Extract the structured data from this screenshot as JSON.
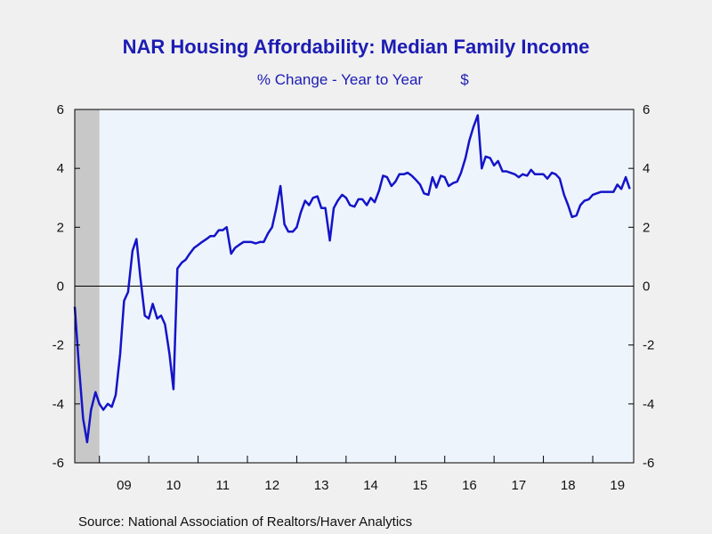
{
  "chart_data": {
    "type": "line",
    "title": "NAR Housing Affordability: Median Family Income",
    "subtitle_left": "% Change - Year to Year",
    "subtitle_right": "$",
    "source": "Source:  National Association of Realtors/Haver Analytics",
    "ylim": [
      -6,
      6
    ],
    "y_ticks_left": [
      "6",
      "4",
      "2",
      "0",
      "-2",
      "-4",
      "-6"
    ],
    "y_ticks_right": [
      "6",
      "4",
      "2",
      "0",
      "-2",
      "-4",
      "-6"
    ],
    "x_start": 2008.5,
    "x_end": 2019.83,
    "x_year_labels": [
      "09",
      "10",
      "11",
      "12",
      "13",
      "14",
      "15",
      "16",
      "17",
      "18",
      "19"
    ],
    "x_year_values": [
      2009.5,
      2010.5,
      2011.5,
      2012.5,
      2013.5,
      2014.5,
      2015.5,
      2016.5,
      2017.5,
      2018.5,
      2019.5
    ],
    "recession_shade": [
      2008.5,
      2009.0
    ],
    "grid": false,
    "colors": {
      "line": "#1414c8",
      "plot_bg": "#eef4fc",
      "recession": "#c8c8c8",
      "text": "#1c1cb4"
    },
    "series": [
      {
        "values": [
          [
            2008.5,
            -0.7
          ],
          [
            2008.58,
            -2.6
          ],
          [
            2008.67,
            -4.5
          ],
          [
            2008.75,
            -5.3
          ],
          [
            2008.83,
            -4.2
          ],
          [
            2008.92,
            -3.6
          ],
          [
            2009.0,
            -4.0
          ],
          [
            2009.08,
            -4.2
          ],
          [
            2009.17,
            -4.0
          ],
          [
            2009.25,
            -4.1
          ],
          [
            2009.33,
            -3.7
          ],
          [
            2009.42,
            -2.3
          ],
          [
            2009.5,
            -0.5
          ],
          [
            2009.58,
            -0.2
          ],
          [
            2009.67,
            1.2
          ],
          [
            2009.75,
            1.6
          ],
          [
            2009.83,
            0.3
          ],
          [
            2009.92,
            -1.0
          ],
          [
            2010.0,
            -1.1
          ],
          [
            2010.08,
            -0.6
          ],
          [
            2010.17,
            -1.1
          ],
          [
            2010.25,
            -1.0
          ],
          [
            2010.33,
            -1.3
          ],
          [
            2010.42,
            -2.3
          ],
          [
            2010.5,
            -3.5
          ],
          [
            2010.58,
            0.6
          ],
          [
            2010.67,
            0.8
          ],
          [
            2010.75,
            0.9
          ],
          [
            2010.83,
            1.1
          ],
          [
            2010.92,
            1.3
          ],
          [
            2011.0,
            1.4
          ],
          [
            2011.08,
            1.5
          ],
          [
            2011.17,
            1.6
          ],
          [
            2011.25,
            1.7
          ],
          [
            2011.33,
            1.7
          ],
          [
            2011.42,
            1.9
          ],
          [
            2011.5,
            1.9
          ],
          [
            2011.58,
            2.0
          ],
          [
            2011.67,
            1.1
          ],
          [
            2011.75,
            1.3
          ],
          [
            2011.83,
            1.4
          ],
          [
            2011.92,
            1.5
          ],
          [
            2012.0,
            1.5
          ],
          [
            2012.08,
            1.5
          ],
          [
            2012.17,
            1.45
          ],
          [
            2012.25,
            1.5
          ],
          [
            2012.33,
            1.5
          ],
          [
            2012.42,
            1.8
          ],
          [
            2012.5,
            2.0
          ],
          [
            2012.58,
            2.6
          ],
          [
            2012.67,
            3.4
          ],
          [
            2012.75,
            2.1
          ],
          [
            2012.83,
            1.85
          ],
          [
            2012.92,
            1.85
          ],
          [
            2013.0,
            2.0
          ],
          [
            2013.08,
            2.5
          ],
          [
            2013.17,
            2.9
          ],
          [
            2013.25,
            2.75
          ],
          [
            2013.33,
            3.0
          ],
          [
            2013.42,
            3.05
          ],
          [
            2013.5,
            2.65
          ],
          [
            2013.58,
            2.65
          ],
          [
            2013.67,
            1.55
          ],
          [
            2013.75,
            2.65
          ],
          [
            2013.83,
            2.9
          ],
          [
            2013.92,
            3.1
          ],
          [
            2014.0,
            3.0
          ],
          [
            2014.08,
            2.75
          ],
          [
            2014.17,
            2.7
          ],
          [
            2014.25,
            2.95
          ],
          [
            2014.33,
            2.95
          ],
          [
            2014.42,
            2.75
          ],
          [
            2014.5,
            3.0
          ],
          [
            2014.58,
            2.85
          ],
          [
            2014.67,
            3.25
          ],
          [
            2014.75,
            3.75
          ],
          [
            2014.83,
            3.7
          ],
          [
            2014.92,
            3.4
          ],
          [
            2015.0,
            3.55
          ],
          [
            2015.08,
            3.8
          ],
          [
            2015.17,
            3.8
          ],
          [
            2015.25,
            3.85
          ],
          [
            2015.33,
            3.75
          ],
          [
            2015.42,
            3.6
          ],
          [
            2015.5,
            3.45
          ],
          [
            2015.58,
            3.15
          ],
          [
            2015.67,
            3.1
          ],
          [
            2015.75,
            3.7
          ],
          [
            2015.83,
            3.35
          ],
          [
            2015.92,
            3.75
          ],
          [
            2016.0,
            3.7
          ],
          [
            2016.08,
            3.4
          ],
          [
            2016.17,
            3.5
          ],
          [
            2016.25,
            3.55
          ],
          [
            2016.33,
            3.85
          ],
          [
            2016.42,
            4.35
          ],
          [
            2016.5,
            4.95
          ],
          [
            2016.58,
            5.4
          ],
          [
            2016.67,
            5.8
          ],
          [
            2016.75,
            4.0
          ],
          [
            2016.83,
            4.4
          ],
          [
            2016.92,
            4.35
          ],
          [
            2017.0,
            4.1
          ],
          [
            2017.08,
            4.25
          ],
          [
            2017.17,
            3.9
          ],
          [
            2017.25,
            3.9
          ],
          [
            2017.33,
            3.85
          ],
          [
            2017.42,
            3.8
          ],
          [
            2017.5,
            3.7
          ],
          [
            2017.58,
            3.8
          ],
          [
            2017.67,
            3.75
          ],
          [
            2017.75,
            3.95
          ],
          [
            2017.83,
            3.8
          ],
          [
            2017.92,
            3.8
          ],
          [
            2018.0,
            3.8
          ],
          [
            2018.08,
            3.65
          ],
          [
            2018.17,
            3.85
          ],
          [
            2018.25,
            3.8
          ],
          [
            2018.33,
            3.65
          ],
          [
            2018.42,
            3.1
          ],
          [
            2018.5,
            2.75
          ],
          [
            2018.58,
            2.35
          ],
          [
            2018.67,
            2.4
          ],
          [
            2018.75,
            2.75
          ],
          [
            2018.83,
            2.9
          ],
          [
            2018.92,
            2.95
          ],
          [
            2019.0,
            3.1
          ],
          [
            2019.08,
            3.15
          ],
          [
            2019.17,
            3.2
          ],
          [
            2019.25,
            3.2
          ],
          [
            2019.33,
            3.2
          ],
          [
            2019.42,
            3.2
          ],
          [
            2019.5,
            3.45
          ],
          [
            2019.58,
            3.3
          ],
          [
            2019.67,
            3.7
          ],
          [
            2019.75,
            3.3
          ]
        ]
      }
    ]
  }
}
